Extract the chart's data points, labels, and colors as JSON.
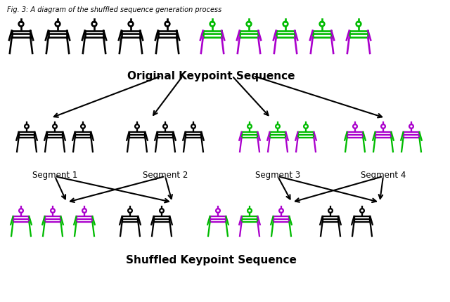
{
  "title": "Original Keypoint Sequence",
  "bottom_title": "Shuffled Keypoint Sequence",
  "caption": "Fig. 3: A diagram of the shuffled sequence generation process",
  "colors": {
    "black": "#000000",
    "green": "#00bb00",
    "purple": "#aa00cc",
    "white": "#ffffff"
  },
  "segment_labels": [
    "Segment 1",
    "Segment 2",
    "Segment 3",
    "Segment 4"
  ],
  "background": "#ffffff",
  "row1_figures": [
    [
      "black",
      "black"
    ],
    [
      "black",
      "black"
    ],
    [
      "black",
      "black"
    ],
    [
      "black",
      "black"
    ],
    [
      "black",
      "black"
    ],
    [
      "green",
      "purple"
    ],
    [
      "green",
      "purple"
    ],
    [
      "green",
      "purple"
    ],
    [
      "green",
      "purple"
    ],
    [
      "green",
      "purple"
    ]
  ],
  "seg1_figures": [
    [
      "black",
      "black"
    ],
    [
      "black",
      "black"
    ],
    [
      "black",
      "black"
    ]
  ],
  "seg2_figures": [
    [
      "black",
      "black"
    ],
    [
      "black",
      "black"
    ],
    [
      "black",
      "black"
    ]
  ],
  "seg3_figures": [
    [
      "green",
      "purple"
    ],
    [
      "green",
      "purple"
    ],
    [
      "green",
      "purple"
    ]
  ],
  "seg4_figures": [
    [
      "purple",
      "green"
    ],
    [
      "purple",
      "green"
    ],
    [
      "purple",
      "green"
    ]
  ],
  "row3_figures": [
    [
      "purple",
      "green"
    ],
    [
      "purple",
      "green"
    ],
    [
      "purple",
      "green"
    ],
    [
      "black",
      "black"
    ],
    [
      "black",
      "black"
    ],
    [
      "purple",
      "green"
    ],
    [
      "purple",
      "green"
    ],
    [
      "green",
      "purple"
    ],
    [
      "black",
      "black"
    ],
    [
      "black",
      "black"
    ]
  ]
}
